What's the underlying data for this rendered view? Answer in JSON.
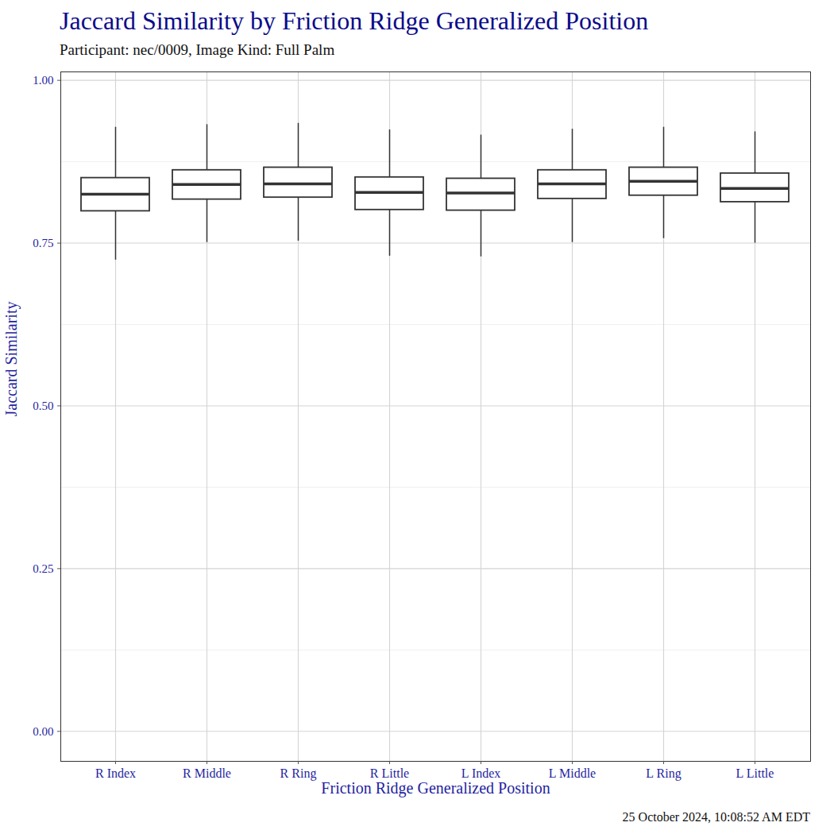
{
  "chart_data": {
    "type": "box",
    "title": "Jaccard Similarity by Friction Ridge Generalized Position",
    "subtitle": "Participant: nec/0009, Image Kind: Full Palm",
    "caption": "25 October 2024, 10:08:52 AM EDT",
    "x_label": "Friction Ridge Generalized Position",
    "y_label": "Jaccard Similarity",
    "categories": [
      "R Index",
      "R Middle",
      "R Ring",
      "R Little",
      "L Index",
      "L Middle",
      "L Ring",
      "L Little"
    ],
    "whisker_low": [
      0.724,
      0.751,
      0.753,
      0.73,
      0.729,
      0.751,
      0.757,
      0.75
    ],
    "q1": [
      0.799,
      0.817,
      0.82,
      0.801,
      0.8,
      0.818,
      0.823,
      0.813
    ],
    "median": [
      0.825,
      0.84,
      0.841,
      0.828,
      0.827,
      0.841,
      0.845,
      0.834
    ],
    "q3": [
      0.85,
      0.862,
      0.866,
      0.851,
      0.849,
      0.862,
      0.866,
      0.857
    ],
    "whisker_high": [
      0.928,
      0.932,
      0.934,
      0.924,
      0.916,
      0.925,
      0.928,
      0.921
    ],
    "color": "#333333",
    "ylim": [
      -0.046,
      1.013
    ],
    "yticks": [
      {
        "value": 0,
        "label": "0.00"
      },
      {
        "value": 0.25,
        "label": "0.25"
      },
      {
        "value": 0.5,
        "label": "0.50"
      },
      {
        "value": 0.75,
        "label": "0.75"
      },
      {
        "value": 1,
        "label": "1.00"
      }
    ],
    "grid": true
  }
}
